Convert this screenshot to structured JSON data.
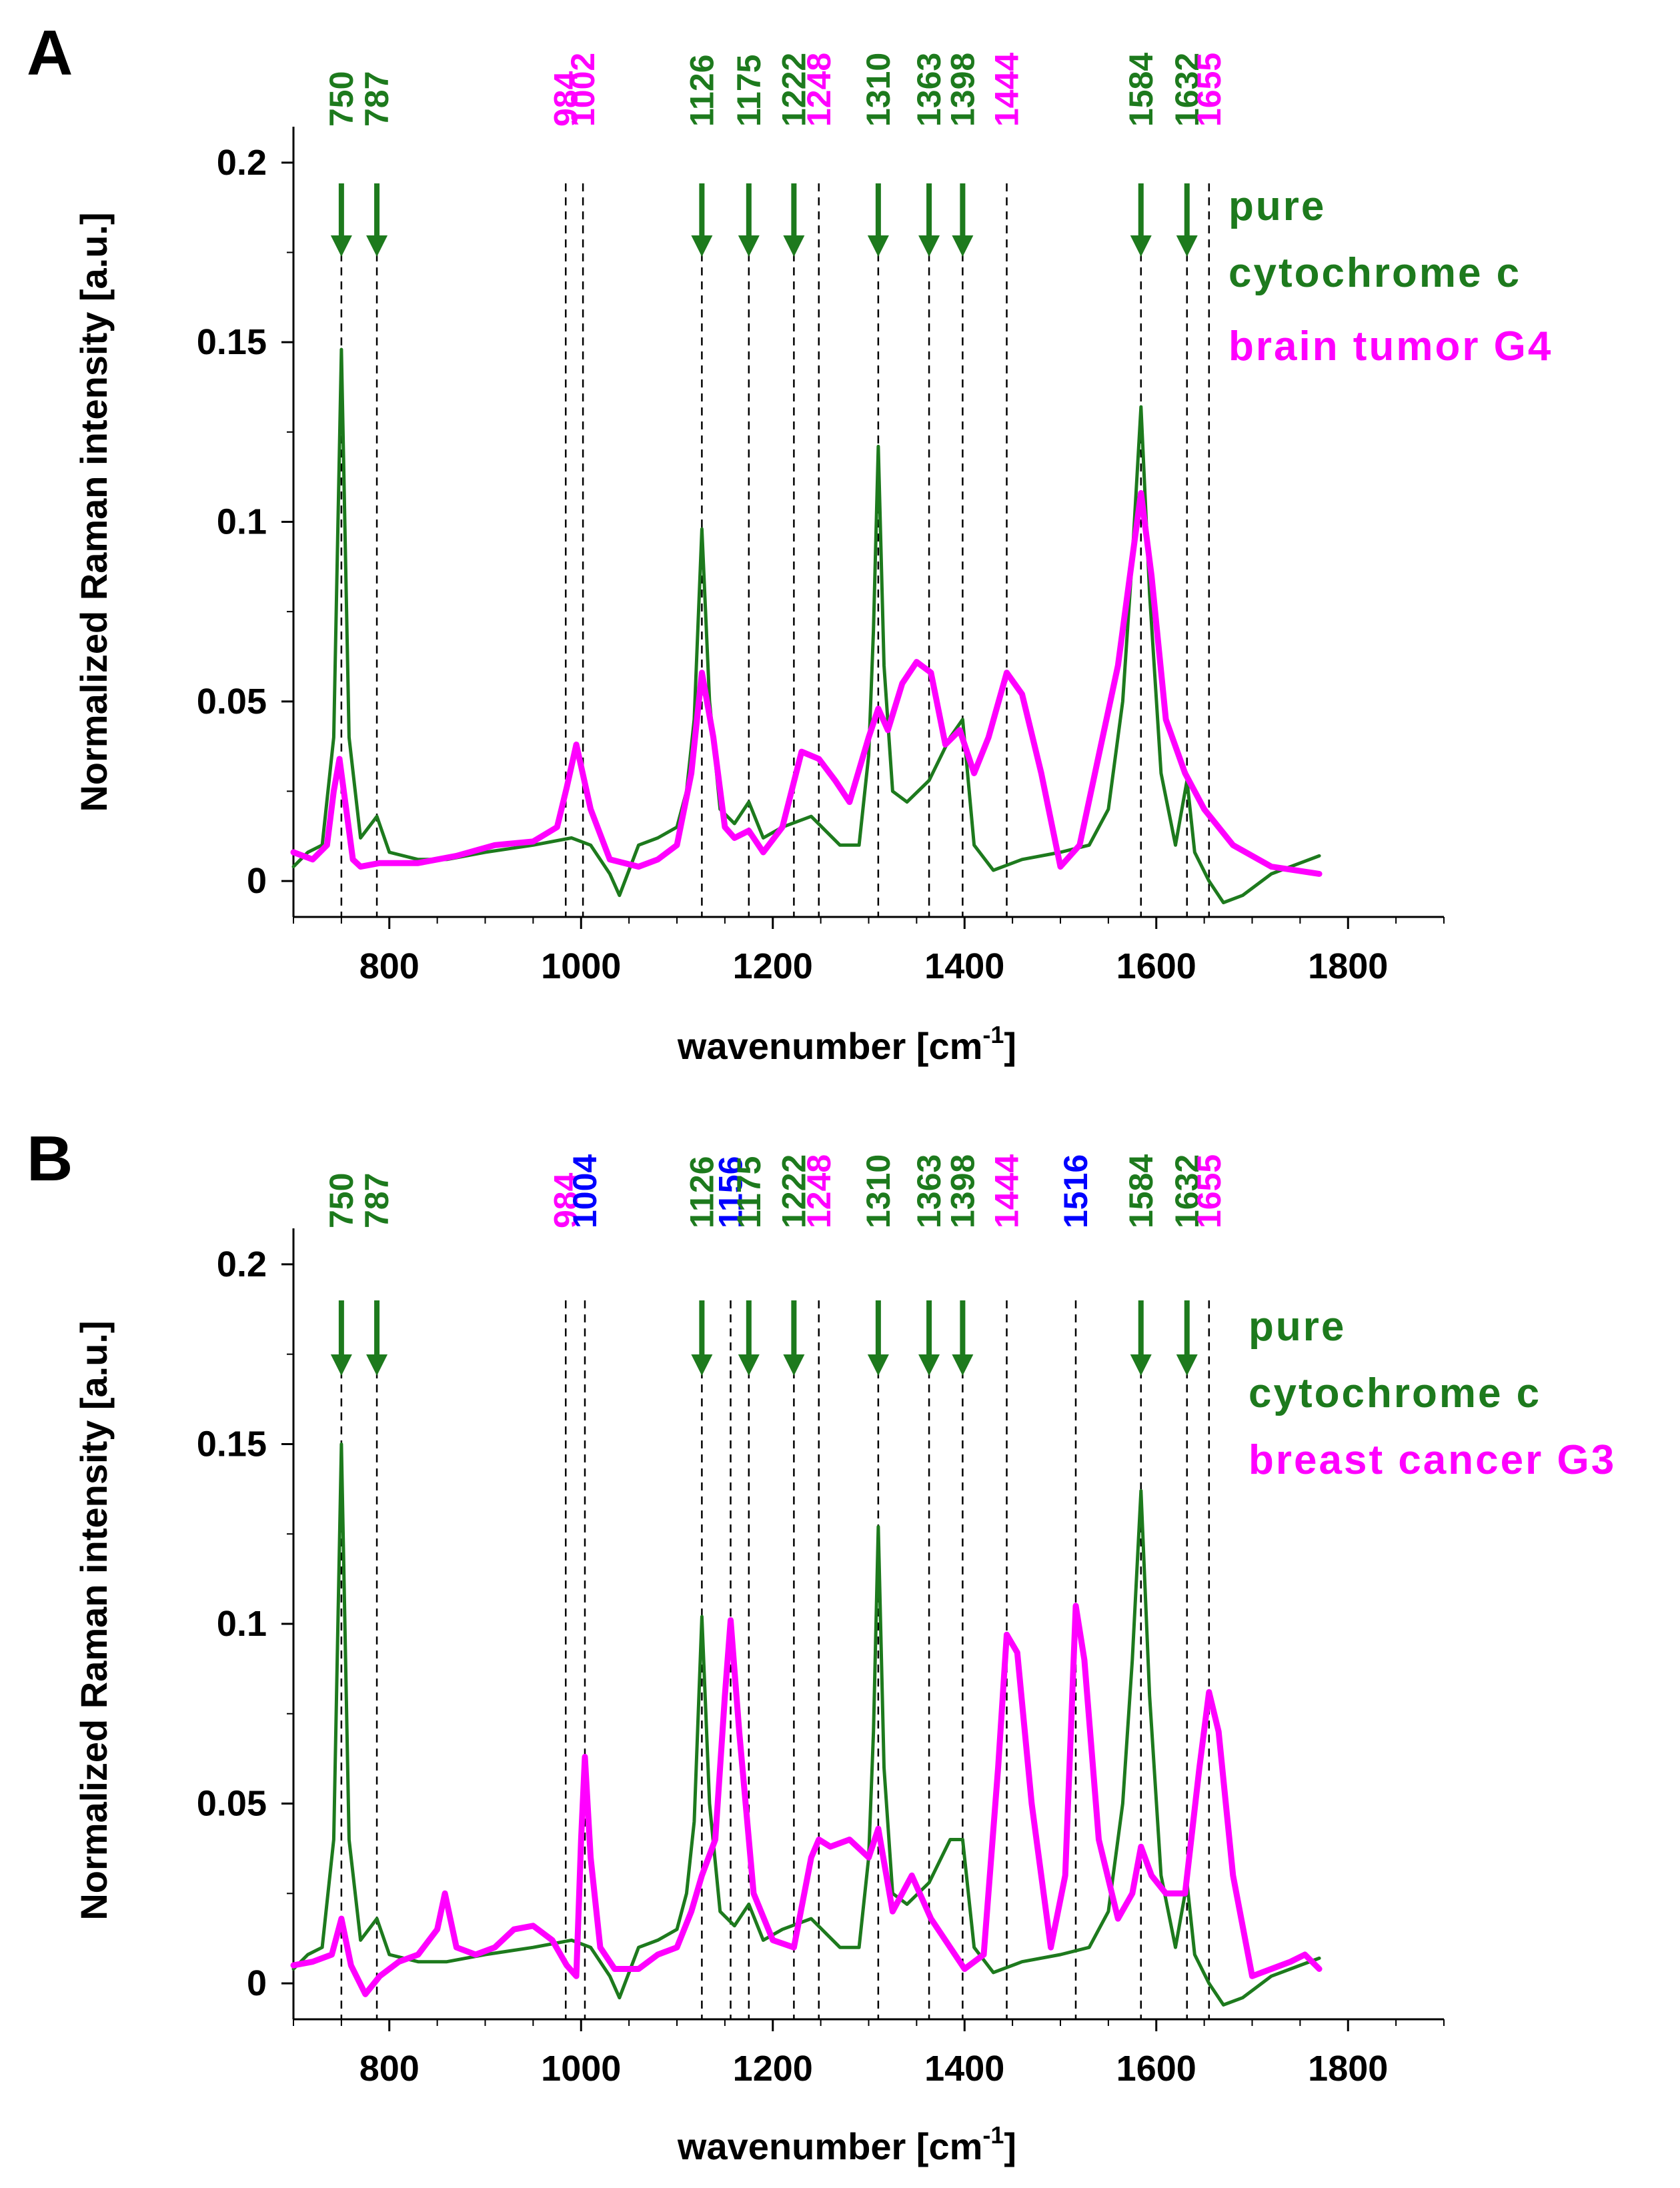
{
  "figure": {
    "panels": [
      {
        "letter": "A",
        "legend": [
          "pure",
          "cytochrome  c",
          "brain tumor G4"
        ],
        "legend_colors": [
          "#1d7a1d",
          "#1d7a1d",
          "#ff00ff"
        ]
      },
      {
        "letter": "B",
        "legend": [
          "pure",
          "cytochrome  c",
          "breast cancer G3"
        ],
        "legend_colors": [
          "#1d7a1d",
          "#1d7a1d",
          "#ff00ff"
        ]
      }
    ]
  },
  "chart_data": [
    {
      "type": "line",
      "panel": "A",
      "xlabel": "wavenumber [cm",
      "xlabel_sup": "-1",
      "xlabel_end": "]",
      "ylabel": "Normalized Raman intensity [a.u.]",
      "xlim": [
        700,
        1900
      ],
      "ylim": [
        -0.01,
        0.21
      ],
      "xticks": [
        800,
        1000,
        1200,
        1400,
        1600,
        1800
      ],
      "xtick_labels": [
        "800",
        "1000",
        "1200",
        "1400",
        "1600",
        "1800"
      ],
      "yticks": [
        0,
        0.05,
        0.1,
        0.15,
        0.2
      ],
      "ytick_labels": [
        "0",
        "0.05",
        "0.1",
        "0.15",
        "0.2"
      ],
      "series": [
        {
          "name": "pure cytochrome c",
          "color": "#1d7a1d",
          "x": [
            700,
            715,
            730,
            742,
            750,
            758,
            770,
            787,
            800,
            830,
            860,
            900,
            950,
            990,
            1010,
            1030,
            1040,
            1060,
            1080,
            1100,
            1110,
            1118,
            1126,
            1134,
            1145,
            1160,
            1175,
            1190,
            1210,
            1240,
            1270,
            1290,
            1300,
            1305,
            1310,
            1316,
            1325,
            1340,
            1363,
            1385,
            1398,
            1410,
            1430,
            1460,
            1500,
            1530,
            1550,
            1565,
            1575,
            1584,
            1593,
            1605,
            1620,
            1632,
            1640,
            1655,
            1670,
            1690,
            1720,
            1750,
            1770
          ],
          "values": [
            0.004,
            0.008,
            0.01,
            0.04,
            0.148,
            0.04,
            0.012,
            0.018,
            0.008,
            0.006,
            0.006,
            0.008,
            0.01,
            0.012,
            0.01,
            0.002,
            -0.004,
            0.01,
            0.012,
            0.015,
            0.025,
            0.045,
            0.098,
            0.05,
            0.02,
            0.016,
            0.022,
            0.012,
            0.015,
            0.018,
            0.01,
            0.01,
            0.035,
            0.07,
            0.121,
            0.06,
            0.025,
            0.022,
            0.028,
            0.04,
            0.045,
            0.01,
            0.003,
            0.006,
            0.008,
            0.01,
            0.02,
            0.05,
            0.09,
            0.132,
            0.08,
            0.03,
            0.01,
            0.028,
            0.008,
            0.0,
            -0.006,
            -0.004,
            0.002,
            0.005,
            0.007
          ]
        },
        {
          "name": "brain tumor G4",
          "color": "#ff00ff",
          "x": [
            700,
            720,
            735,
            742,
            748,
            755,
            762,
            770,
            790,
            830,
            870,
            910,
            950,
            975,
            985,
            995,
            1010,
            1030,
            1060,
            1080,
            1100,
            1115,
            1126,
            1138,
            1150,
            1160,
            1175,
            1190,
            1210,
            1230,
            1248,
            1265,
            1280,
            1300,
            1310,
            1320,
            1335,
            1350,
            1365,
            1380,
            1395,
            1410,
            1425,
            1444,
            1460,
            1480,
            1500,
            1520,
            1540,
            1560,
            1575,
            1584,
            1595,
            1610,
            1630,
            1650,
            1680,
            1720,
            1770
          ],
          "values": [
            0.008,
            0.006,
            0.01,
            0.025,
            0.034,
            0.02,
            0.006,
            0.004,
            0.005,
            0.005,
            0.007,
            0.01,
            0.011,
            0.015,
            0.026,
            0.038,
            0.02,
            0.006,
            0.004,
            0.006,
            0.01,
            0.03,
            0.058,
            0.04,
            0.015,
            0.012,
            0.014,
            0.008,
            0.015,
            0.036,
            0.034,
            0.028,
            0.022,
            0.04,
            0.048,
            0.042,
            0.055,
            0.061,
            0.058,
            0.038,
            0.042,
            0.03,
            0.04,
            0.058,
            0.052,
            0.03,
            0.004,
            0.01,
            0.035,
            0.06,
            0.09,
            0.108,
            0.085,
            0.045,
            0.03,
            0.02,
            0.01,
            0.004,
            0.002
          ]
        }
      ],
      "annotations": [
        {
          "x": 750,
          "label": "750",
          "color": "#1d7a1d",
          "marker": "arrow"
        },
        {
          "x": 787,
          "label": "787",
          "color": "#1d7a1d",
          "marker": "arrow"
        },
        {
          "x": 984,
          "label": "984",
          "color": "#ff00ff",
          "marker": "line"
        },
        {
          "x": 1002,
          "label": "1002",
          "color": "#ff00ff",
          "marker": "line"
        },
        {
          "x": 1126,
          "label": "1126",
          "color": "#1d7a1d",
          "marker": "arrow"
        },
        {
          "x": 1175,
          "label": "1175",
          "color": "#1d7a1d",
          "marker": "arrow"
        },
        {
          "x": 1222,
          "label": "1222",
          "color": "#1d7a1d",
          "marker": "arrow"
        },
        {
          "x": 1248,
          "label": "1248",
          "color": "#ff00ff",
          "marker": "line"
        },
        {
          "x": 1310,
          "label": "1310",
          "color": "#1d7a1d",
          "marker": "arrow"
        },
        {
          "x": 1363,
          "label": "1363",
          "color": "#1d7a1d",
          "marker": "arrow"
        },
        {
          "x": 1398,
          "label": "1398",
          "color": "#1d7a1d",
          "marker": "arrow"
        },
        {
          "x": 1444,
          "label": "1444",
          "color": "#ff00ff",
          "marker": "line"
        },
        {
          "x": 1584,
          "label": "1584",
          "color": "#1d7a1d",
          "marker": "arrow"
        },
        {
          "x": 1632,
          "label": "1632",
          "color": "#1d7a1d",
          "marker": "arrow"
        },
        {
          "x": 1655,
          "label": "1655",
          "color": "#ff00ff",
          "marker": "line"
        }
      ]
    },
    {
      "type": "line",
      "panel": "B",
      "xlabel": "wavenumber [cm",
      "xlabel_sup": "-1",
      "xlabel_end": "]",
      "ylabel": "Normalized Raman intensity [a.u.]",
      "xlim": [
        700,
        1900
      ],
      "ylim": [
        -0.01,
        0.21
      ],
      "xticks": [
        800,
        1000,
        1200,
        1400,
        1600,
        1800
      ],
      "xtick_labels": [
        "800",
        "1000",
        "1200",
        "1400",
        "1600",
        "1800"
      ],
      "yticks": [
        0,
        0.05,
        0.1,
        0.15,
        0.2
      ],
      "ytick_labels": [
        "0",
        "0.05",
        "0.1",
        "0.15",
        "0.2"
      ],
      "series": [
        {
          "name": "pure cytochrome c",
          "color": "#1d7a1d",
          "x": [
            700,
            715,
            730,
            742,
            750,
            758,
            770,
            787,
            800,
            830,
            860,
            900,
            950,
            990,
            1010,
            1030,
            1040,
            1060,
            1080,
            1100,
            1110,
            1118,
            1126,
            1134,
            1145,
            1160,
            1175,
            1190,
            1210,
            1240,
            1270,
            1290,
            1300,
            1305,
            1310,
            1316,
            1325,
            1340,
            1363,
            1385,
            1398,
            1410,
            1430,
            1460,
            1500,
            1530,
            1550,
            1565,
            1575,
            1584,
            1593,
            1605,
            1620,
            1632,
            1640,
            1655,
            1670,
            1690,
            1720,
            1750,
            1770
          ],
          "values": [
            0.004,
            0.008,
            0.01,
            0.04,
            0.15,
            0.04,
            0.012,
            0.018,
            0.008,
            0.006,
            0.006,
            0.008,
            0.01,
            0.012,
            0.01,
            0.002,
            -0.004,
            0.01,
            0.012,
            0.015,
            0.025,
            0.045,
            0.102,
            0.05,
            0.02,
            0.016,
            0.022,
            0.012,
            0.015,
            0.018,
            0.01,
            0.01,
            0.035,
            0.07,
            0.127,
            0.06,
            0.025,
            0.022,
            0.028,
            0.04,
            0.04,
            0.01,
            0.003,
            0.006,
            0.008,
            0.01,
            0.02,
            0.05,
            0.09,
            0.137,
            0.08,
            0.03,
            0.01,
            0.028,
            0.008,
            0.0,
            -0.006,
            -0.004,
            0.002,
            0.005,
            0.007
          ]
        },
        {
          "name": "breast cancer G3",
          "color": "#ff00ff",
          "x": [
            700,
            720,
            740,
            750,
            760,
            775,
            790,
            810,
            830,
            850,
            858,
            870,
            890,
            910,
            930,
            950,
            970,
            985,
            995,
            1000,
            1004,
            1010,
            1020,
            1035,
            1060,
            1080,
            1100,
            1115,
            1126,
            1140,
            1150,
            1156,
            1165,
            1180,
            1200,
            1222,
            1240,
            1248,
            1260,
            1280,
            1300,
            1310,
            1325,
            1345,
            1365,
            1385,
            1400,
            1420,
            1435,
            1444,
            1455,
            1470,
            1490,
            1505,
            1516,
            1525,
            1540,
            1560,
            1575,
            1584,
            1595,
            1610,
            1630,
            1645,
            1655,
            1665,
            1680,
            1700,
            1720,
            1740,
            1755,
            1770
          ],
          "values": [
            0.005,
            0.006,
            0.008,
            0.018,
            0.005,
            -0.003,
            0.002,
            0.006,
            0.008,
            0.015,
            0.025,
            0.01,
            0.008,
            0.01,
            0.015,
            0.016,
            0.012,
            0.005,
            0.002,
            0.04,
            0.063,
            0.035,
            0.01,
            0.004,
            0.004,
            0.008,
            0.01,
            0.02,
            0.03,
            0.04,
            0.08,
            0.101,
            0.07,
            0.025,
            0.012,
            0.01,
            0.035,
            0.04,
            0.038,
            0.04,
            0.035,
            0.043,
            0.02,
            0.03,
            0.018,
            0.01,
            0.004,
            0.008,
            0.06,
            0.097,
            0.092,
            0.05,
            0.01,
            0.03,
            0.105,
            0.09,
            0.04,
            0.018,
            0.025,
            0.038,
            0.03,
            0.025,
            0.025,
            0.06,
            0.081,
            0.07,
            0.03,
            0.002,
            0.004,
            0.006,
            0.008,
            0.004
          ]
        }
      ],
      "annotations": [
        {
          "x": 750,
          "label": "750",
          "color": "#1d7a1d",
          "marker": "arrow"
        },
        {
          "x": 787,
          "label": "787",
          "color": "#1d7a1d",
          "marker": "arrow"
        },
        {
          "x": 984,
          "label": "984",
          "color": "#ff00ff",
          "marker": "line"
        },
        {
          "x": 1004,
          "label": "1004",
          "color": "#0000ff",
          "marker": "line"
        },
        {
          "x": 1126,
          "label": "1126",
          "color": "#1d7a1d",
          "marker": "arrow"
        },
        {
          "x": 1156,
          "label": "1156",
          "color": "#0000ff",
          "marker": "line"
        },
        {
          "x": 1175,
          "label": "1175",
          "color": "#1d7a1d",
          "marker": "arrow"
        },
        {
          "x": 1222,
          "label": "1222",
          "color": "#1d7a1d",
          "marker": "arrow"
        },
        {
          "x": 1248,
          "label": "1248",
          "color": "#ff00ff",
          "marker": "line"
        },
        {
          "x": 1310,
          "label": "1310",
          "color": "#1d7a1d",
          "marker": "arrow"
        },
        {
          "x": 1363,
          "label": "1363",
          "color": "#1d7a1d",
          "marker": "arrow"
        },
        {
          "x": 1398,
          "label": "1398",
          "color": "#1d7a1d",
          "marker": "arrow"
        },
        {
          "x": 1444,
          "label": "1444",
          "color": "#ff00ff",
          "marker": "line"
        },
        {
          "x": 1516,
          "label": "1516",
          "color": "#0000ff",
          "marker": "line"
        },
        {
          "x": 1584,
          "label": "1584",
          "color": "#1d7a1d",
          "marker": "arrow"
        },
        {
          "x": 1632,
          "label": "1632",
          "color": "#1d7a1d",
          "marker": "arrow"
        },
        {
          "x": 1655,
          "label": "1655",
          "color": "#ff00ff",
          "marker": "line"
        }
      ]
    }
  ]
}
